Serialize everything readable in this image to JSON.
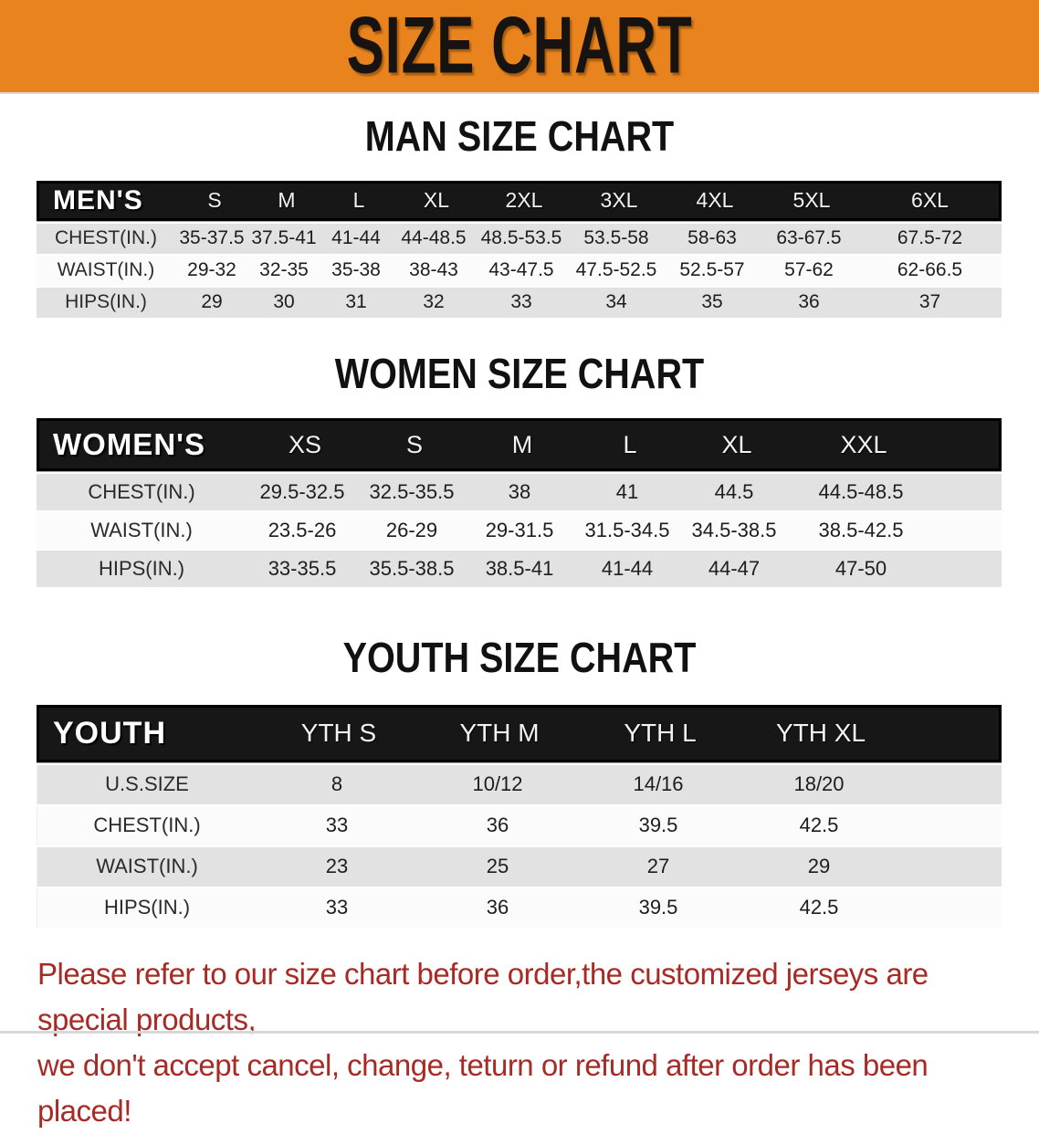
{
  "banner": {
    "title": "SIZE CHART",
    "bg_color": "#E8831D"
  },
  "colors": {
    "banner_bg": "#E8831D",
    "header_bar": "#171717",
    "stripe_gray": "#E2E2E2",
    "stripe_white": "#FBFBFB",
    "disclaimer_red": "#A82A25"
  },
  "sections": [
    {
      "heading": "MAN SIZE CHART",
      "header_label": "MEN'S",
      "columns": [
        "S",
        "M",
        "L",
        "XL",
        "2XL",
        "3XL",
        "4XL",
        "5XL",
        "6XL"
      ],
      "rows": [
        {
          "label": "CHEST(IN.)",
          "values": [
            "35-37.5",
            "37.5-41",
            "41-44",
            "44-48.5",
            "48.5-53.5",
            "53.5-58",
            "58-63",
            "63-67.5",
            "67.5-72"
          ]
        },
        {
          "label": "WAIST(IN.)",
          "values": [
            "29-32",
            "32-35",
            "35-38",
            "38-43",
            "43-47.5",
            "47.5-52.5",
            "52.5-57",
            "57-62",
            "62-66.5"
          ]
        },
        {
          "label": "HIPS(IN.)",
          "values": [
            "29",
            "30",
            "31",
            "32",
            "33",
            "34",
            "35",
            "36",
            "37"
          ]
        }
      ]
    },
    {
      "heading": "WOMEN SIZE CHART",
      "header_label": "WOMEN'S",
      "columns": [
        "XS",
        "S",
        "M",
        "L",
        "XL",
        "XXL"
      ],
      "rows": [
        {
          "label": "CHEST(IN.)",
          "values": [
            "29.5-32.5",
            "32.5-35.5",
            "38",
            "41",
            "44.5",
            "44.5-48.5"
          ]
        },
        {
          "label": "WAIST(IN.)",
          "values": [
            "23.5-26",
            "26-29",
            "29-31.5",
            "31.5-34.5",
            "34.5-38.5",
            "38.5-42.5"
          ]
        },
        {
          "label": "HIPS(IN.)",
          "values": [
            "33-35.5",
            "35.5-38.5",
            "38.5-41",
            "41-44",
            "44-47",
            "47-50"
          ]
        }
      ]
    },
    {
      "heading": "YOUTH SIZE CHART",
      "header_label": "YOUTH",
      "columns": [
        "YTH S",
        "YTH M",
        "YTH L",
        "YTH XL"
      ],
      "rows": [
        {
          "label": "U.S.SIZE",
          "values": [
            "8",
            "10/12",
            "14/16",
            "18/20"
          ]
        },
        {
          "label": "CHEST(IN.)",
          "values": [
            "33",
            "36",
            "39.5",
            "42.5"
          ]
        },
        {
          "label": "WAIST(IN.)",
          "values": [
            "23",
            "25",
            "27",
            "29"
          ]
        },
        {
          "label": "HIPS(IN.)",
          "values": [
            "33",
            "36",
            "39.5",
            "42.5"
          ]
        }
      ]
    }
  ],
  "footer": {
    "line1": "Please refer to our size chart before order,the customized jerseys are special products,",
    "line2": "we don't accept cancel, change, teturn or refund after order has been placed!"
  }
}
